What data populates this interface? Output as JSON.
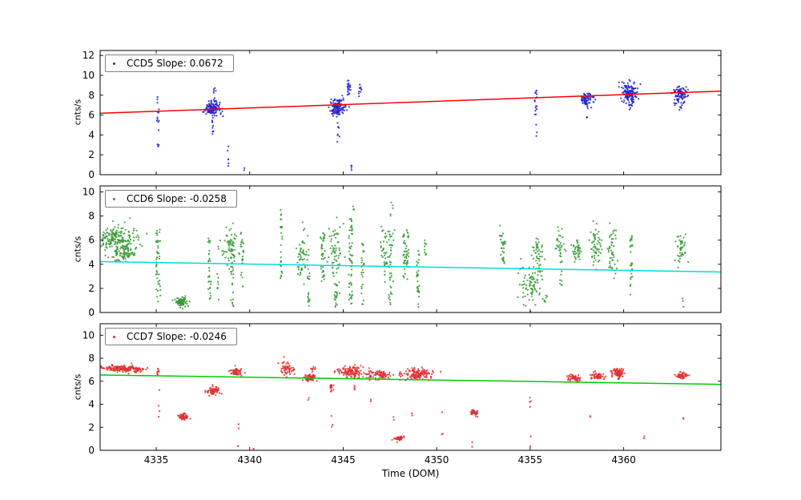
{
  "figure": {
    "background": "#ffffff",
    "text_color": "#000000"
  },
  "chart_data": {
    "type": "scatter",
    "title": "",
    "xlabel": "Time (DOM)",
    "xlim": [
      4332.0,
      4365.2
    ],
    "xticks": [
      4335,
      4340,
      4345,
      4350,
      4355,
      4360
    ],
    "legend_position": "upper left",
    "grid": false,
    "cluster_format": "[x_center, x_spread, y_center, y_spread, n_points, type] type n=gaussian blob, v=uniform vertical streak",
    "panels": [
      {
        "name": "CCD5",
        "legend": "CCD5 Slope: 0.0672",
        "slope": 0.0672,
        "ylabel": "cnts/s",
        "ylim": [
          0,
          12.5
        ],
        "yticks": [
          0,
          2,
          4,
          6,
          8,
          10,
          12
        ],
        "marker_color": "#2323cc",
        "line_color": "#ff0000",
        "fit_line": {
          "x": [
            4332.0,
            4365.2
          ],
          "y": [
            6.18,
            8.41
          ]
        },
        "clusters": [
          [
            4335.1,
            0.06,
            5.6,
            2.9,
            16,
            "v"
          ],
          [
            4338.0,
            0.22,
            6.7,
            0.35,
            130,
            "n"
          ],
          [
            4338.0,
            0.06,
            5.2,
            1.3,
            12,
            "v"
          ],
          [
            4338.15,
            0.08,
            8.2,
            0.8,
            10,
            "v"
          ],
          [
            4338.85,
            0.04,
            1.8,
            1.5,
            6,
            "v"
          ],
          [
            4339.7,
            0.02,
            0.4,
            0.3,
            2,
            "v"
          ],
          [
            4344.7,
            0.22,
            6.8,
            0.4,
            130,
            "n"
          ],
          [
            4344.75,
            0.07,
            4.8,
            1.6,
            10,
            "v"
          ],
          [
            4345.3,
            0.1,
            8.8,
            0.8,
            22,
            "v"
          ],
          [
            4345.45,
            0.03,
            1.2,
            1.0,
            4,
            "v"
          ],
          [
            4345.9,
            0.06,
            8.6,
            0.35,
            10,
            "n"
          ],
          [
            4355.3,
            0.06,
            7.4,
            1.5,
            16,
            "v"
          ],
          [
            4355.35,
            0.03,
            4.6,
            0.8,
            3,
            "v"
          ],
          [
            4358.0,
            0.18,
            7.5,
            0.35,
            70,
            "n"
          ],
          [
            4358.05,
            0.04,
            6.3,
            0.6,
            5,
            "v"
          ],
          [
            4360.3,
            0.22,
            8.2,
            0.55,
            140,
            "n"
          ],
          [
            4360.3,
            0.04,
            6.9,
            0.4,
            4,
            "v"
          ],
          [
            4363.0,
            0.2,
            8.1,
            0.5,
            90,
            "n"
          ],
          [
            4363.05,
            0.04,
            7.0,
            0.3,
            4,
            "v"
          ]
        ]
      },
      {
        "name": "CCD6",
        "legend": "CCD6 Slope: -0.0258",
        "slope": -0.0258,
        "ylabel": "cnts/s",
        "ylim": [
          0,
          10.5
        ],
        "yticks": [
          0,
          2,
          4,
          6,
          8,
          10
        ],
        "marker_color": "#339933",
        "line_color": "#00dddd",
        "fit_line": {
          "x": [
            4332.0,
            4365.2
          ],
          "y": [
            4.22,
            3.36
          ]
        },
        "clusters": [
          [
            4333.0,
            0.55,
            5.9,
            0.6,
            190,
            "n"
          ],
          [
            4333.3,
            0.35,
            4.8,
            0.3,
            50,
            "n"
          ],
          [
            4332.4,
            0.25,
            6.5,
            0.35,
            25,
            "n"
          ],
          [
            4335.1,
            0.12,
            3.8,
            3.2,
            45,
            "v"
          ],
          [
            4336.35,
            0.18,
            0.95,
            0.2,
            70,
            "n"
          ],
          [
            4337.85,
            0.08,
            3.8,
            2.9,
            28,
            "v"
          ],
          [
            4338.3,
            0.05,
            2.0,
            1.5,
            8,
            "v"
          ],
          [
            4338.9,
            0.25,
            5.4,
            0.7,
            70,
            "n"
          ],
          [
            4339.05,
            0.08,
            2.2,
            1.7,
            18,
            "v"
          ],
          [
            4339.6,
            0.08,
            4.3,
            2.4,
            22,
            "v"
          ],
          [
            4341.7,
            0.06,
            5.6,
            3.0,
            26,
            "v"
          ],
          [
            4342.8,
            0.18,
            4.9,
            1.1,
            55,
            "n"
          ],
          [
            4343.15,
            0.07,
            2.4,
            1.9,
            16,
            "v"
          ],
          [
            4343.9,
            0.12,
            4.6,
            2.0,
            40,
            "v"
          ],
          [
            4344.55,
            0.18,
            5.1,
            1.3,
            60,
            "n"
          ],
          [
            4344.6,
            0.08,
            1.4,
            1.1,
            22,
            "v"
          ],
          [
            4345.4,
            0.1,
            4.3,
            3.6,
            55,
            "v"
          ],
          [
            4345.55,
            0.04,
            8.6,
            0.3,
            4,
            "v"
          ],
          [
            4346.05,
            0.08,
            3.2,
            2.6,
            26,
            "v"
          ],
          [
            4347.35,
            0.18,
            5.4,
            1.3,
            65,
            "n"
          ],
          [
            4347.5,
            0.07,
            2.2,
            1.6,
            16,
            "v"
          ],
          [
            4347.65,
            0.03,
            8.8,
            0.2,
            2,
            "v"
          ],
          [
            4348.35,
            0.15,
            4.8,
            2.1,
            50,
            "v"
          ],
          [
            4349.0,
            0.07,
            2.8,
            2.4,
            28,
            "v"
          ],
          [
            4349.4,
            0.05,
            5.2,
            0.9,
            10,
            "v"
          ],
          [
            4353.5,
            0.12,
            5.6,
            0.8,
            26,
            "n"
          ],
          [
            4353.55,
            0.04,
            4.2,
            0.5,
            4,
            "v"
          ],
          [
            4355.0,
            0.3,
            2.4,
            0.9,
            85,
            "n"
          ],
          [
            4355.4,
            0.18,
            5.0,
            0.7,
            40,
            "n"
          ],
          [
            4355.8,
            0.05,
            1.1,
            0.4,
            6,
            "v"
          ],
          [
            4356.6,
            0.12,
            5.6,
            0.7,
            30,
            "n"
          ],
          [
            4356.65,
            0.06,
            3.2,
            1.4,
            10,
            "v"
          ],
          [
            4357.5,
            0.13,
            5.1,
            0.5,
            40,
            "n"
          ],
          [
            4358.5,
            0.15,
            5.4,
            0.9,
            55,
            "n"
          ],
          [
            4359.4,
            0.12,
            5.1,
            1.0,
            45,
            "n"
          ],
          [
            4360.4,
            0.07,
            3.8,
            2.7,
            30,
            "v"
          ],
          [
            4363.1,
            0.15,
            5.3,
            0.6,
            45,
            "n"
          ],
          [
            4363.15,
            0.03,
            1.1,
            0.3,
            3,
            "n"
          ]
        ]
      },
      {
        "name": "CCD7",
        "legend": "CCD7 Slope: -0.0246",
        "slope": -0.0246,
        "ylabel": "cnts/s",
        "ylim": [
          0,
          11
        ],
        "yticks": [
          0,
          2,
          4,
          6,
          8,
          10
        ],
        "marker_color": "#e03030",
        "line_color": "#00cc00",
        "fit_line": {
          "x": [
            4332.0,
            4365.2
          ],
          "y": [
            6.55,
            5.73
          ]
        },
        "clusters": [
          [
            4333.2,
            0.5,
            7.1,
            0.13,
            160,
            "n"
          ],
          [
            4334.0,
            0.08,
            6.85,
            0.15,
            12,
            "n"
          ],
          [
            4335.1,
            0.06,
            6.8,
            0.25,
            10,
            "n"
          ],
          [
            4335.15,
            0.03,
            4.0,
            2.5,
            4,
            "v"
          ],
          [
            4336.45,
            0.13,
            2.9,
            0.13,
            55,
            "n"
          ],
          [
            4338.05,
            0.18,
            5.2,
            0.18,
            65,
            "n"
          ],
          [
            4339.25,
            0.15,
            6.8,
            0.18,
            55,
            "n"
          ],
          [
            4339.4,
            0.04,
            1.2,
            1.1,
            4,
            "v"
          ],
          [
            4340.2,
            0.02,
            0.3,
            0.2,
            2,
            "v"
          ],
          [
            4342.0,
            0.2,
            7.1,
            0.35,
            55,
            "n"
          ],
          [
            4343.25,
            0.2,
            6.3,
            0.18,
            70,
            "n"
          ],
          [
            4343.35,
            0.08,
            7.05,
            0.12,
            10,
            "n"
          ],
          [
            4343.15,
            0.03,
            4.3,
            0.3,
            2,
            "v"
          ],
          [
            4344.35,
            0.08,
            5.5,
            0.18,
            16,
            "n"
          ],
          [
            4344.4,
            0.03,
            2.6,
            0.7,
            3,
            "v"
          ],
          [
            4345.45,
            0.4,
            6.8,
            0.22,
            130,
            "n"
          ],
          [
            4345.6,
            0.04,
            5.4,
            0.3,
            4,
            "v"
          ],
          [
            4346.95,
            0.3,
            6.5,
            0.18,
            85,
            "n"
          ],
          [
            4346.5,
            0.03,
            4.4,
            0.3,
            2,
            "v"
          ],
          [
            4348.0,
            0.12,
            1.05,
            0.12,
            40,
            "n"
          ],
          [
            4348.05,
            0.05,
            6.6,
            0.2,
            6,
            "n"
          ],
          [
            4347.7,
            0.03,
            2.6,
            0.3,
            2,
            "v"
          ],
          [
            4349.0,
            0.4,
            6.6,
            0.25,
            130,
            "n"
          ],
          [
            4348.7,
            0.03,
            3.1,
            0.4,
            2,
            "v"
          ],
          [
            4350.3,
            0.04,
            2.2,
            1.3,
            3,
            "v"
          ],
          [
            4352.0,
            0.12,
            3.3,
            0.13,
            45,
            "n"
          ],
          [
            4351.9,
            0.02,
            0.5,
            0.3,
            2,
            "v"
          ],
          [
            4355.0,
            0.04,
            2.6,
            2.5,
            6,
            "v"
          ],
          [
            4357.3,
            0.18,
            6.3,
            0.13,
            55,
            "n"
          ],
          [
            4358.6,
            0.18,
            6.4,
            0.15,
            55,
            "n"
          ],
          [
            4358.2,
            0.02,
            2.9,
            0.2,
            2,
            "v"
          ],
          [
            4359.7,
            0.15,
            6.7,
            0.18,
            90,
            "n"
          ],
          [
            4361.1,
            0.02,
            1.3,
            0.3,
            2,
            "v"
          ],
          [
            4363.1,
            0.15,
            6.5,
            0.15,
            65,
            "n"
          ],
          [
            4363.2,
            0.03,
            2.9,
            0.2,
            2,
            "v"
          ]
        ]
      }
    ]
  }
}
